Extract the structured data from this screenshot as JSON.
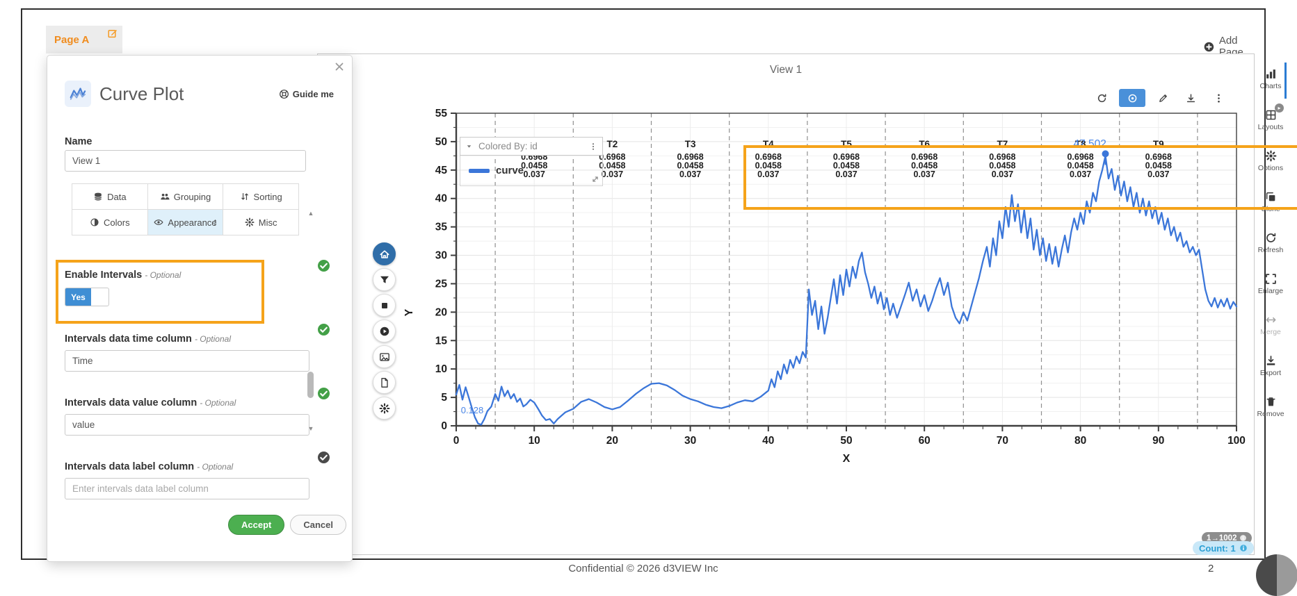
{
  "page": {
    "tab_label": "Page A",
    "edit_icon": "edit-icon",
    "add_page_label": "Add Page",
    "add_icon": "plus-circle-icon",
    "page_number": "2",
    "footer": "Confidential © 2026  d3VIEW Inc"
  },
  "panel": {
    "icon": "curve-plot-icon",
    "title": "Curve Plot",
    "guide_icon": "lifebuoy-icon",
    "guide_label": "Guide me",
    "close_icon": "close-icon",
    "name_label": "Name",
    "name_value": "View 1",
    "tabs": [
      {
        "label": "Data",
        "icon": "database-icon",
        "active": false
      },
      {
        "label": "Grouping",
        "icon": "grouping-icon",
        "active": false
      },
      {
        "label": "Sorting",
        "icon": "sorting-icon",
        "active": false
      },
      {
        "label": "Colors",
        "icon": "colors-icon",
        "active": false
      },
      {
        "label": "Appearance",
        "icon": "appearance-icon",
        "active": true,
        "sort_arrows": true
      },
      {
        "label": "Misc",
        "icon": "gear-icon",
        "active": false
      }
    ],
    "fields": [
      {
        "label": "Enable Intervals",
        "suffix": "- Optional",
        "type": "toggle",
        "toggle_value": "Yes",
        "status": "valid",
        "highlighted": true
      },
      {
        "label": "Intervals data time column",
        "suffix": "- Optional",
        "type": "input",
        "value": "Time",
        "placeholder": "",
        "status": "valid"
      },
      {
        "label": "Intervals data value column",
        "suffix": "- Optional",
        "type": "input",
        "value": "value",
        "placeholder": "",
        "status": "valid"
      },
      {
        "label": "Intervals data label column",
        "suffix": "- Optional",
        "type": "input",
        "value": "",
        "placeholder": "Enter intervals data label column",
        "status": "neutral"
      }
    ],
    "accept_label": "Accept",
    "cancel_label": "Cancel"
  },
  "left_toolbar": [
    {
      "name": "home",
      "icon": "home-icon",
      "active": true
    },
    {
      "name": "filter",
      "icon": "filter-icon",
      "active": false
    },
    {
      "name": "stop",
      "icon": "stop-icon",
      "active": false
    },
    {
      "name": "play",
      "icon": "play-icon",
      "active": false
    },
    {
      "name": "image",
      "icon": "image-icon",
      "active": false
    },
    {
      "name": "report",
      "icon": "report-icon",
      "active": false
    },
    {
      "name": "settings",
      "icon": "gear-icon",
      "active": false
    }
  ],
  "view": {
    "title": "View 1",
    "toolbar": [
      {
        "name": "refresh",
        "icon": "refresh-icon",
        "active": false
      },
      {
        "name": "highlight",
        "icon": "target-icon",
        "active": true
      },
      {
        "name": "annotate",
        "icon": "pencil-icon",
        "active": false
      },
      {
        "name": "download",
        "icon": "download-icon",
        "active": false
      },
      {
        "name": "more",
        "icon": "kebab-icon",
        "active": false
      }
    ],
    "legend": {
      "chevron_icon": "chevron-down-icon",
      "menu_icon": "kebab-icon",
      "resize_icon": "resize-icon",
      "title": "Colored By: id",
      "series": [
        {
          "label": "curve",
          "color": "#3b76d9"
        }
      ]
    },
    "range_badge": "1→1002",
    "range_info_icon": "info-icon",
    "count_badge": "Count: 1",
    "count_info_icon": "info-icon"
  },
  "sidebar": {
    "items": [
      {
        "label": "Charts",
        "icon": "charts-icon",
        "active": true,
        "badge": false,
        "disabled": false
      },
      {
        "label": "Layouts",
        "icon": "layouts-icon",
        "active": false,
        "badge": true,
        "disabled": false
      },
      {
        "label": "Options",
        "icon": "gear-icon",
        "active": false,
        "badge": false,
        "disabled": false
      },
      {
        "label": "Clone",
        "icon": "clone-icon",
        "active": false,
        "badge": false,
        "disabled": false
      },
      {
        "label": "Refresh",
        "icon": "refresh-icon",
        "active": false,
        "badge": false,
        "disabled": false
      },
      {
        "label": "Enlarge",
        "icon": "enlarge-icon",
        "active": false,
        "badge": false,
        "disabled": false
      },
      {
        "label": "Merge",
        "icon": "merge-icon",
        "active": false,
        "badge": false,
        "disabled": true
      },
      {
        "label": "Export",
        "icon": "export-icon",
        "active": false,
        "badge": false,
        "disabled": false
      },
      {
        "label": "Remove",
        "icon": "trash-icon",
        "active": false,
        "badge": false,
        "disabled": false
      }
    ]
  },
  "chart_data": {
    "type": "line",
    "title": "View 1",
    "xlabel": "X",
    "ylabel": "Y",
    "xlim": [
      0,
      100
    ],
    "ylim": [
      0,
      55
    ],
    "x_ticks": [
      0,
      10,
      20,
      30,
      40,
      50,
      60,
      70,
      80,
      90,
      100
    ],
    "y_ticks": [
      0,
      5,
      10,
      15,
      20,
      25,
      30,
      35,
      40,
      45,
      50,
      55
    ],
    "grid": true,
    "legend_position": "top-left",
    "intervals": {
      "boundaries": [
        5,
        15,
        25,
        35,
        45,
        55,
        65,
        75,
        85,
        95
      ],
      "labels": [
        "T1",
        "T2",
        "T3",
        "T4",
        "T5",
        "T6",
        "T7",
        "T8",
        "T9"
      ],
      "values": [
        "0.6968",
        "0.0458",
        "0.037"
      ]
    },
    "marker": {
      "x": 83.2,
      "y": 47.5,
      "label": "47.502"
    },
    "annotations": [
      {
        "x": 0.6,
        "y": 2.2,
        "text": "0.128"
      }
    ],
    "series": [
      {
        "name": "curve",
        "color": "#3b76d9",
        "points": [
          [
            0,
            5.5
          ],
          [
            0.4,
            7.2
          ],
          [
            0.8,
            4.6
          ],
          [
            1.2,
            6.8
          ],
          [
            1.6,
            5
          ],
          [
            2,
            3.2
          ],
          [
            2.4,
            1.5
          ],
          [
            2.8,
            0.4
          ],
          [
            3.2,
            0.2
          ],
          [
            3.6,
            1.2
          ],
          [
            4,
            2.6
          ],
          [
            4.5,
            3.4
          ],
          [
            5,
            5.6
          ],
          [
            5.4,
            4.4
          ],
          [
            5.8,
            6.9
          ],
          [
            6.2,
            5.2
          ],
          [
            6.6,
            6.2
          ],
          [
            7,
            4.8
          ],
          [
            7.4,
            5.6
          ],
          [
            7.8,
            4.2
          ],
          [
            8.2,
            4.8
          ],
          [
            8.6,
            3.4
          ],
          [
            9,
            3.8
          ],
          [
            9.5,
            4.6
          ],
          [
            10,
            4.1
          ],
          [
            10.5,
            3
          ],
          [
            11,
            1.8
          ],
          [
            11.5,
            1
          ],
          [
            12,
            1.2
          ],
          [
            12.5,
            0.4
          ],
          [
            13,
            1.2
          ],
          [
            13.5,
            1.8
          ],
          [
            14,
            2.4
          ],
          [
            15,
            3
          ],
          [
            16,
            4.2
          ],
          [
            17,
            4.7
          ],
          [
            18,
            4.1
          ],
          [
            19,
            3.3
          ],
          [
            20,
            2.9
          ],
          [
            21,
            3.3
          ],
          [
            22,
            4.4
          ],
          [
            23,
            5.6
          ],
          [
            24,
            6.6
          ],
          [
            25,
            7.4
          ],
          [
            26,
            7.5
          ],
          [
            27,
            7.1
          ],
          [
            28,
            6.3
          ],
          [
            29,
            5.3
          ],
          [
            30,
            4.7
          ],
          [
            31,
            4.3
          ],
          [
            32,
            3.7
          ],
          [
            33,
            3.3
          ],
          [
            34,
            3.1
          ],
          [
            35,
            3.5
          ],
          [
            36,
            4.1
          ],
          [
            37,
            4.5
          ],
          [
            38,
            4.3
          ],
          [
            39,
            5.1
          ],
          [
            40,
            6.2
          ],
          [
            40.4,
            8.2
          ],
          [
            40.8,
            6.8
          ],
          [
            41.2,
            9.6
          ],
          [
            41.6,
            8.2
          ],
          [
            42,
            10.8
          ],
          [
            42.4,
            9.2
          ],
          [
            42.8,
            11.6
          ],
          [
            43.2,
            10.2
          ],
          [
            43.6,
            12.2
          ],
          [
            44,
            11
          ],
          [
            44.4,
            13
          ],
          [
            44.8,
            12
          ],
          [
            45.2,
            24
          ],
          [
            45.6,
            19.5
          ],
          [
            46,
            22
          ],
          [
            46.4,
            17
          ],
          [
            46.8,
            21
          ],
          [
            47.2,
            16.2
          ],
          [
            47.6,
            19
          ],
          [
            48,
            22.5
          ],
          [
            48.4,
            25.8
          ],
          [
            48.8,
            21.5
          ],
          [
            49.2,
            26.5
          ],
          [
            49.6,
            23
          ],
          [
            50,
            27.5
          ],
          [
            50.4,
            24.5
          ],
          [
            50.8,
            28
          ],
          [
            51.2,
            26
          ],
          [
            51.6,
            29
          ],
          [
            52,
            30.5
          ],
          [
            52.4,
            27
          ],
          [
            52.8,
            25
          ],
          [
            53.2,
            22.5
          ],
          [
            53.6,
            24.5
          ],
          [
            54,
            21.5
          ],
          [
            54.4,
            23.5
          ],
          [
            54.8,
            20.5
          ],
          [
            55.2,
            22.5
          ],
          [
            55.6,
            19.5
          ],
          [
            56,
            21.5
          ],
          [
            56.5,
            19
          ],
          [
            57,
            21
          ],
          [
            57.5,
            23
          ],
          [
            58,
            25.2
          ],
          [
            58.5,
            22
          ],
          [
            59,
            24
          ],
          [
            59.5,
            21
          ],
          [
            60,
            23
          ],
          [
            60.5,
            20.2
          ],
          [
            61,
            22
          ],
          [
            61.5,
            24.2
          ],
          [
            62,
            26
          ],
          [
            62.5,
            23
          ],
          [
            63,
            25.2
          ],
          [
            63.5,
            21
          ],
          [
            64,
            19
          ],
          [
            64.5,
            18
          ],
          [
            65,
            20
          ],
          [
            65.5,
            18.5
          ],
          [
            66,
            21
          ],
          [
            66.5,
            23.5
          ],
          [
            67,
            26
          ],
          [
            67.5,
            29
          ],
          [
            68,
            31.5
          ],
          [
            68.4,
            28
          ],
          [
            68.8,
            33
          ],
          [
            69.2,
            30
          ],
          [
            69.6,
            36
          ],
          [
            70,
            33
          ],
          [
            70.4,
            38.5
          ],
          [
            70.8,
            35
          ],
          [
            71.2,
            40.6
          ],
          [
            71.6,
            36
          ],
          [
            72,
            39
          ],
          [
            72.4,
            34
          ],
          [
            72.8,
            38
          ],
          [
            73.2,
            33
          ],
          [
            73.6,
            36.5
          ],
          [
            74,
            31
          ],
          [
            74.4,
            34.5
          ],
          [
            74.8,
            30
          ],
          [
            75.2,
            33
          ],
          [
            75.6,
            29
          ],
          [
            76,
            32
          ],
          [
            76.4,
            28.5
          ],
          [
            76.8,
            31.5
          ],
          [
            77.2,
            28
          ],
          [
            77.6,
            31
          ],
          [
            78,
            33.5
          ],
          [
            78.4,
            30.5
          ],
          [
            78.8,
            34
          ],
          [
            79.2,
            36.5
          ],
          [
            79.6,
            34.5
          ],
          [
            80,
            37.5
          ],
          [
            80.4,
            35.5
          ],
          [
            80.8,
            39.5
          ],
          [
            81.2,
            37.5
          ],
          [
            81.6,
            41
          ],
          [
            82,
            39.5
          ],
          [
            82.4,
            43
          ],
          [
            82.8,
            45
          ],
          [
            83.2,
            47.5
          ],
          [
            83.6,
            43.5
          ],
          [
            84,
            45.2
          ],
          [
            84.4,
            41.5
          ],
          [
            84.8,
            44
          ],
          [
            85.2,
            40.5
          ],
          [
            85.6,
            43
          ],
          [
            86,
            39.5
          ],
          [
            86.4,
            42
          ],
          [
            86.8,
            38.5
          ],
          [
            87.2,
            41
          ],
          [
            87.6,
            37.5
          ],
          [
            88,
            40
          ],
          [
            88.4,
            37
          ],
          [
            88.8,
            39.5
          ],
          [
            89.2,
            36.5
          ],
          [
            89.6,
            38.5
          ],
          [
            90,
            35.5
          ],
          [
            90.4,
            37.5
          ],
          [
            90.8,
            34.5
          ],
          [
            91.2,
            36.5
          ],
          [
            91.6,
            33.5
          ],
          [
            92,
            35
          ],
          [
            92.4,
            32.5
          ],
          [
            92.8,
            34
          ],
          [
            93.2,
            31.5
          ],
          [
            93.6,
            32.5
          ],
          [
            94,
            30.5
          ],
          [
            94.4,
            31.5
          ],
          [
            94.8,
            30
          ],
          [
            95.2,
            31
          ],
          [
            95.6,
            27.5
          ],
          [
            96,
            24
          ],
          [
            96.4,
            22
          ],
          [
            96.8,
            21
          ],
          [
            97.2,
            22.5
          ],
          [
            97.6,
            20.8
          ],
          [
            98,
            22.2
          ],
          [
            98.4,
            21
          ],
          [
            98.8,
            22.4
          ],
          [
            99.2,
            20.6
          ],
          [
            99.6,
            21.8
          ],
          [
            100,
            21
          ]
        ]
      }
    ]
  }
}
